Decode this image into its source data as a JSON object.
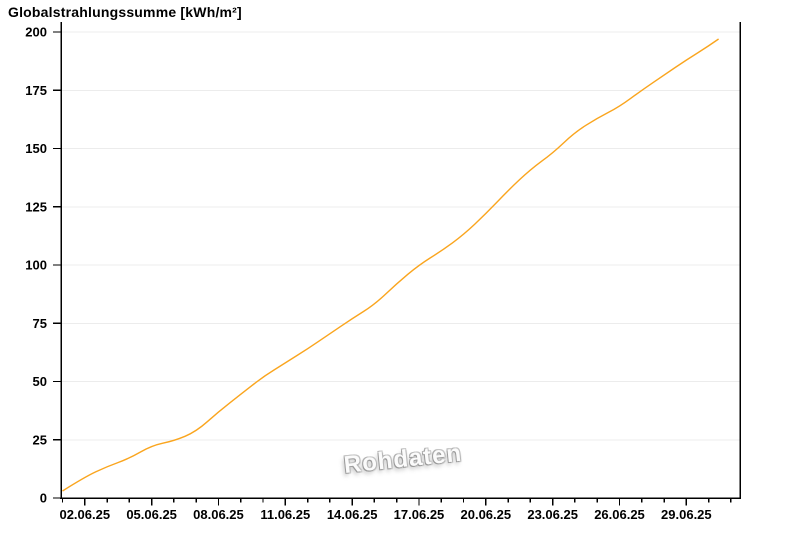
{
  "title": "Globalstrahlungssumme [kWh/m²]",
  "watermark": "Rohdaten",
  "colors": {
    "line": "#FAA51E",
    "grid": "#ECECEC",
    "axis": "#000000",
    "text": "#000000",
    "background": "#FFFFFF",
    "watermark_fill": "#FBFBFB",
    "watermark_shadow": "#9A9A9A"
  },
  "chart_data": {
    "type": "line",
    "title": "Globalstrahlungssumme [kWh/m²]",
    "xlabel": "",
    "ylabel": "kWh/m²",
    "ylim": [
      0,
      200
    ],
    "y_ticks": [
      0,
      25,
      50,
      75,
      100,
      125,
      150,
      175,
      200
    ],
    "grid": "horizontal",
    "legend": "none",
    "x_axis": {
      "start_day": 1,
      "end_day": 31,
      "minor_tick_interval_days": 1,
      "major_tick_interval_days": 3
    },
    "x_major_ticks": [
      {
        "day": 2,
        "label": "02.06.25"
      },
      {
        "day": 5,
        "label": "05.06.25"
      },
      {
        "day": 8,
        "label": "08.06.25"
      },
      {
        "day": 11,
        "label": "11.06.25"
      },
      {
        "day": 14,
        "label": "14.06.25"
      },
      {
        "day": 17,
        "label": "17.06.25"
      },
      {
        "day": 20,
        "label": "20.06.25"
      },
      {
        "day": 23,
        "label": "23.06.25"
      },
      {
        "day": 26,
        "label": "26.06.25"
      },
      {
        "day": 29,
        "label": "29.06.25"
      }
    ],
    "series": [
      {
        "name": "Rohdaten",
        "color": "#FAA51E",
        "unit": "kWh/m²",
        "days": [
          1,
          2,
          3,
          4,
          5,
          6,
          7,
          8,
          9,
          10,
          11,
          12,
          13,
          14,
          15,
          16,
          17,
          18,
          19,
          20,
          21,
          22,
          23,
          24,
          25,
          26,
          27,
          28,
          29,
          30,
          30.45
        ],
        "dates": [
          "01.06.25",
          "02.06.25",
          "03.06.25",
          "04.06.25",
          "05.06.25",
          "06.06.25",
          "07.06.25",
          "08.06.25",
          "09.06.25",
          "10.06.25",
          "11.06.25",
          "12.06.25",
          "13.06.25",
          "14.06.25",
          "15.06.25",
          "16.06.25",
          "17.06.25",
          "18.06.25",
          "19.06.25",
          "20.06.25",
          "21.06.25",
          "22.06.25",
          "23.06.25",
          "24.06.25",
          "25.06.25",
          "26.06.25",
          "27.06.25",
          "28.06.25",
          "29.06.25",
          "30.06.25",
          "30.06.25"
        ],
        "values": [
          3,
          9,
          13.5,
          17,
          22.5,
          24.5,
          28.5,
          37,
          44.5,
          52,
          58,
          64,
          70.5,
          77,
          83,
          92,
          100,
          106,
          113,
          122,
          132,
          141,
          148,
          157,
          163,
          168,
          175,
          181.5,
          188,
          194,
          197
        ]
      }
    ]
  }
}
